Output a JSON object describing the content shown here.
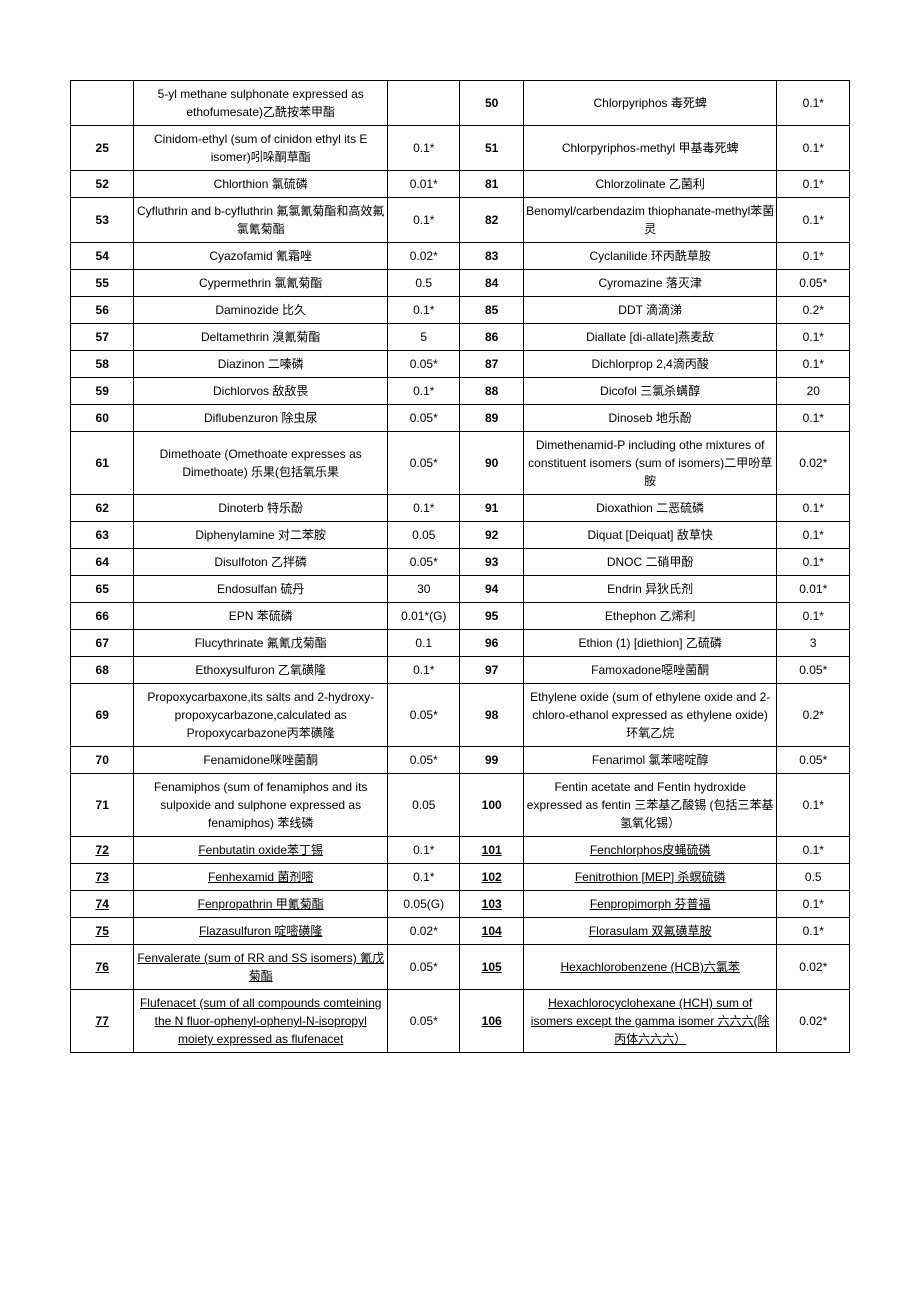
{
  "table": {
    "rows": [
      {
        "l_num": "",
        "l_name": "5-yl methane sulphonate expressed as ethofumesate)乙酰按苯甲酯",
        "l_val": "",
        "r_num": "50",
        "r_name": "Chlorpyriphos 毒死蜱",
        "r_val": "0.1*"
      },
      {
        "l_num": "25",
        "l_name": "Cinidom-ethyl (sum of cinidon ethyl its E isomer)吲哚酮草酯",
        "l_val": "0.1*",
        "r_num": "51",
        "r_name": "Chlorpyriphos-methyl 甲基毒死蜱",
        "r_val": "0.1*"
      },
      {
        "l_num": "52",
        "l_name": "Chlorthion 氯硫磷",
        "l_val": "0.01*",
        "r_num": "81",
        "r_name": "Chlorzolinate 乙菌利",
        "r_val": "0.1*"
      },
      {
        "l_num": "53",
        "l_name": "Cyfluthrin and b-cyfluthrin 氟氯氰菊酯和高效氟氯氰菊酯",
        "l_val": "0.1*",
        "r_num": "82",
        "r_name": "Benomyl/carbendazim thiophanate-methyl苯菌灵",
        "r_val": "0.1*"
      },
      {
        "l_num": "54",
        "l_name": "Cyazofamid 氰霜唑",
        "l_val": "0.02*",
        "r_num": "83",
        "r_name": "Cyclanilide 环丙酰草胺",
        "r_val": "0.1*"
      },
      {
        "l_num": "55",
        "l_name": "Cypermethrin 氯氰菊酯",
        "l_val": "0.5",
        "r_num": "84",
        "r_name": "Cyromazine 落灭津",
        "r_val": "0.05*"
      },
      {
        "l_num": "56",
        "l_name": "Daminozide 比久",
        "l_val": "0.1*",
        "r_num": "85",
        "r_name": "DDT  滴滴涕",
        "r_val": "0.2*"
      },
      {
        "l_num": "57",
        "l_name": "Deltamethrin 溴氰菊酯",
        "l_val": "5",
        "r_num": "86",
        "r_name": "Diallate [di-allate]燕麦敌",
        "r_val": "0.1*"
      },
      {
        "l_num": "58",
        "l_name": "Diazinon 二嗪磷",
        "l_val": "0.05*",
        "r_num": "87",
        "r_name": "Dichlorprop 2,4滴丙酸",
        "r_val": "0.1*"
      },
      {
        "l_num": "59",
        "l_name": "Dichlorvos 敌敌畏",
        "l_val": "0.1*",
        "r_num": "88",
        "r_name": "Dicofol 三氯杀螨醇",
        "r_val": "20"
      },
      {
        "l_num": "60",
        "l_name": "Diflubenzuron 除虫尿",
        "l_val": "0.05*",
        "r_num": "89",
        "r_name": "Dinoseb 地乐酚",
        "r_val": "0.1*"
      },
      {
        "l_num": "61",
        "l_name": "Dimethoate (Omethoate expresses as Dimethoate) 乐果(包括氧乐果",
        "l_val": "0.05*",
        "r_num": "90",
        "r_name": "Dimethenamid-P including othe mixtures of constituent isomers (sum of isomers)二甲吩草胺",
        "r_val": "0.02*"
      },
      {
        "l_num": "62",
        "l_name": "Dinoterb 特乐酚",
        "l_val": "0.1*",
        "r_num": "91",
        "r_name": "Dioxathion 二恶硫磷",
        "r_val": "0.1*"
      },
      {
        "l_num": "63",
        "l_name": "Diphenylamine 对二苯胺",
        "l_val": "0.05",
        "r_num": "92",
        "r_name": "Diquat [Deiquat] 敌草快",
        "r_val": "0.1*"
      },
      {
        "l_num": "64",
        "l_name": "Disulfoton 乙拌磷",
        "l_val": "0.05*",
        "r_num": "93",
        "r_name": "DNOC 二硝甲酚",
        "r_val": "0.1*"
      },
      {
        "l_num": "65",
        "l_name": "Endosulfan 硫丹",
        "l_val": "30",
        "r_num": "94",
        "r_name": "Endrin 异狄氏剂",
        "r_val": "0.01*"
      },
      {
        "l_num": "66",
        "l_name": "EPN 苯硫磷",
        "l_val": "0.01*(G)",
        "r_num": "95",
        "r_name": "Ethephon 乙烯利",
        "r_val": "0.1*"
      },
      {
        "l_num": "67",
        "l_name": "Flucythrinate 氟氰戊菊酯",
        "l_val": "0.1",
        "r_num": "96",
        "r_name": "Ethion (1) [diethion] 乙硫磷",
        "r_val": "3"
      },
      {
        "l_num": "68",
        "l_name": "Ethoxysulfuron 乙氧磺隆",
        "l_val": "0.1*",
        "r_num": "97",
        "r_name": "Famoxadone噁唑菌酮",
        "r_val": "0.05*"
      },
      {
        "l_num": "69",
        "l_name": "Propoxycarbaxone,its salts and 2-hydroxy-propoxycarbazone,calculated as Propoxycarbazone丙苯磺隆",
        "l_val": "0.05*",
        "r_num": "98",
        "r_name": "Ethylene oxide (sum of ethylene oxide and 2-chloro-ethanol expressed as ethylene oxide) 环氧乙烷",
        "r_val": "0.2*"
      },
      {
        "l_num": "70",
        "l_name": "Fenamidone咪唑菌酮",
        "l_val": "0.05*",
        "r_num": "99",
        "r_name": "Fenarimol 氯苯嘧啶醇",
        "r_val": "0.05*"
      },
      {
        "l_num": "71",
        "l_name": "Fenamiphos (sum of fenamiphos and its sulpoxide and sulphone expressed as fenamiphos) 苯线磷",
        "l_val": "0.05",
        "r_num": "100",
        "r_name": "Fentin acetate and Fentin hydroxide expressed as fentin 三苯基乙酸锡 (包括三苯基氢氧化锡）",
        "r_val": "0.1*"
      },
      {
        "l_num": "72",
        "l_name": "Fenbutatin oxide苯丁锡",
        "l_val": "0.1*",
        "r_num": "101",
        "r_name": "Fenchlorphos皮蝇硫磷",
        "r_val": "0.1*",
        "underline": true
      },
      {
        "l_num": "73",
        "l_name": "Fenhexamid 菌剂嘧",
        "l_val": "0.1*",
        "r_num": "102",
        "r_name": "Fenitrothion [MEP] 杀螟硫磷",
        "r_val": "0.5",
        "underline": true
      },
      {
        "l_num": "74",
        "l_name": "Fenpropathrin 甲氰菊酯",
        "l_val": "0.05(G)",
        "r_num": "103",
        "r_name": "Fenpropimorph 芬普福",
        "r_val": "0.1*",
        "underline": true
      },
      {
        "l_num": "75",
        "l_name": "Flazasulfuron 啶嘧磺隆",
        "l_val": "0.02*",
        "r_num": "104",
        "r_name": "Florasulam 双氟磺草胺",
        "r_val": "0.1*",
        "underline": true
      },
      {
        "l_num": "76",
        "l_name": "Fenvalerate (sum of RR and SS isomers) 氰戊菊酯",
        "l_val": "0.05*",
        "r_num": "105",
        "r_name": "Hexachlorobenzene (HCB)六氯苯",
        "r_val": "0.02*",
        "underline": true
      },
      {
        "l_num": "77",
        "l_name": "Flufenacet (sum of all compounds comteining the N fluor-ophenyl-ophenyl-N-isopropyl moiety expressed as flufenacet",
        "l_val": "0.05*",
        "r_num": "106",
        "r_name": "Hexachlorocyclohexane (HCH) sum of isomers except the gamma isomer\n六六六(除丙体六六六）",
        "r_val": "0.02*",
        "underline": true
      }
    ]
  }
}
